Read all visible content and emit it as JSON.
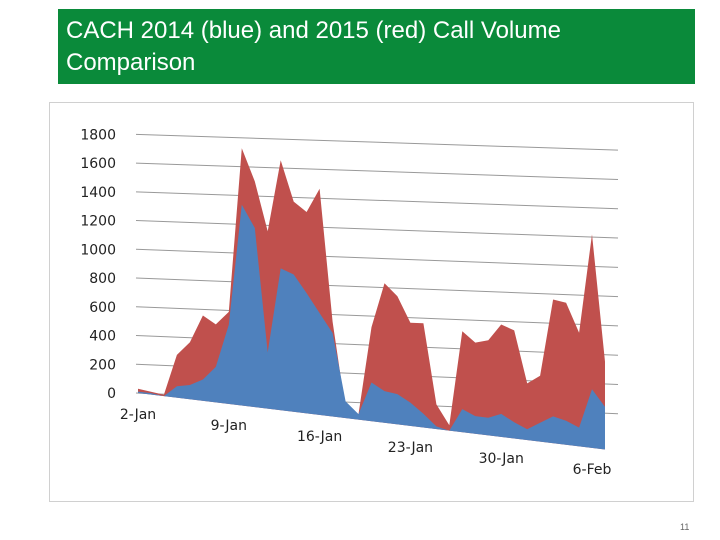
{
  "slide": {
    "title": "CACH 2014 (blue) and 2015 (red) Call Volume Comparison",
    "page_number": "11"
  },
  "colors": {
    "banner": "#0a8a3a",
    "series_2015": "#c0504d",
    "series_2014": "#4f81bd",
    "grid": "#999999"
  },
  "chart_data": {
    "type": "area",
    "title": "CACH 2014 (blue) and 2015 (red) Call Volume Comparison",
    "xlabel": "",
    "ylabel": "",
    "ylim": [
      0,
      1800
    ],
    "y_ticks": [
      "1800",
      "1600",
      "1400",
      "1200",
      "1000",
      "800",
      "600",
      "400",
      "200",
      "0"
    ],
    "x_tick_labels": [
      "2-Jan",
      "9-Jan",
      "16-Jan",
      "23-Jan",
      "30-Jan",
      "6-Feb"
    ],
    "grid": "horizontal",
    "perspective": "3d",
    "x": [
      "2-Jan",
      "3-Jan",
      "4-Jan",
      "5-Jan",
      "6-Jan",
      "7-Jan",
      "8-Jan",
      "9-Jan",
      "10-Jan",
      "11-Jan",
      "12-Jan",
      "13-Jan",
      "14-Jan",
      "15-Jan",
      "16-Jan",
      "17-Jan",
      "18-Jan",
      "19-Jan",
      "20-Jan",
      "21-Jan",
      "22-Jan",
      "23-Jan",
      "24-Jan",
      "25-Jan",
      "26-Jan",
      "27-Jan",
      "28-Jan",
      "29-Jan",
      "30-Jan",
      "31-Jan",
      "1-Feb",
      "2-Feb",
      "3-Feb",
      "4-Feb",
      "5-Feb",
      "6-Feb",
      "7-Feb"
    ],
    "series": [
      {
        "name": "2015",
        "values": [
          30,
          20,
          10,
          300,
          400,
          600,
          550,
          650,
          1820,
          1600,
          1260,
          1780,
          1500,
          1440,
          1620,
          680,
          60,
          40,
          680,
          1010,
          930,
          750,
          760,
          180,
          40,
          740,
          670,
          700,
          830,
          800,
          420,
          490,
          1070,
          1060,
          850,
          1600,
          660
        ]
      },
      {
        "name": "2014",
        "values": [
          10,
          10,
          0,
          80,
          100,
          150,
          250,
          560,
          1420,
          1270,
          400,
          1010,
          980,
          860,
          730,
          600,
          120,
          40,
          280,
          230,
          220,
          170,
          100,
          20,
          0,
          170,
          130,
          130,
          170,
          120,
          80,
          140,
          200,
          180,
          140,
          440,
          320
        ]
      }
    ]
  }
}
